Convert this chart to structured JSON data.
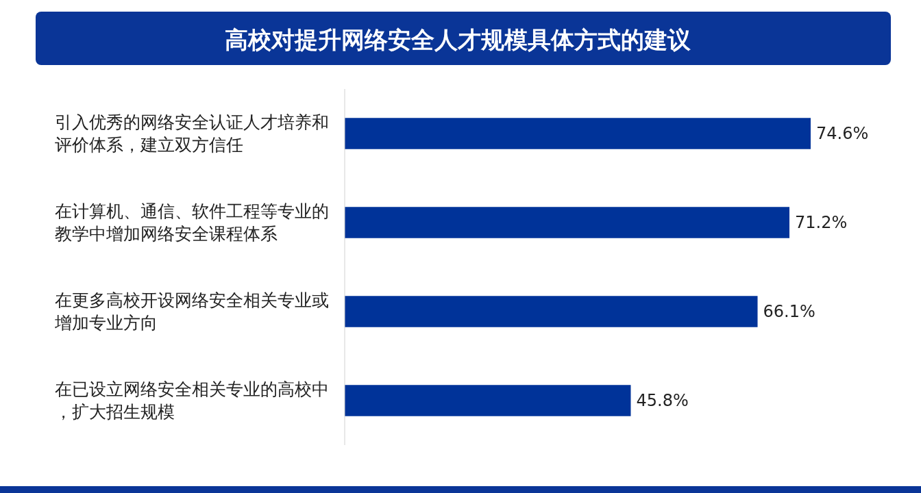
{
  "chart_data": {
    "type": "bar",
    "orientation": "horizontal",
    "title": "高校对提升网络安全人才规模具体方式的建议",
    "categories": [
      "引入优秀的网络安全认证人才培养和评价体系，建立双方信任",
      "在计算机、通信、软件工程等专业的教学中增加网络安全课程体系",
      "在更多高校开设网络安全相关专业或增加专业方向",
      "在已设立网络安全相关专业的高校中，扩大招生规模"
    ],
    "values": [
      74.6,
      71.2,
      66.1,
      45.8
    ],
    "value_labels": [
      "74.6%",
      "71.2%",
      "66.1%",
      "45.8%"
    ],
    "color": "#003399"
  }
}
